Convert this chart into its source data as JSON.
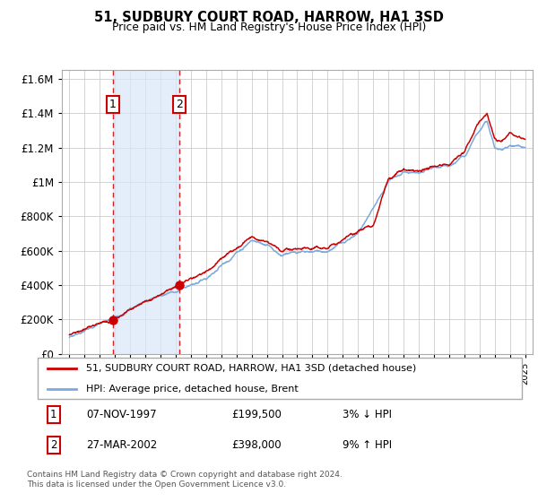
{
  "title": "51, SUDBURY COURT ROAD, HARROW, HA1 3SD",
  "subtitle": "Price paid vs. HM Land Registry's House Price Index (HPI)",
  "background_color": "#ffffff",
  "grid_color": "#cccccc",
  "hpi_color": "#7aaadd",
  "price_color": "#cc0000",
  "sale1_x": 1997.855,
  "sale1_y": 199500,
  "sale2_x": 2002.23,
  "sale2_y": 398000,
  "ylim": [
    0,
    1650000
  ],
  "yticks": [
    0,
    200000,
    400000,
    600000,
    800000,
    1000000,
    1200000,
    1400000,
    1600000
  ],
  "xlim": [
    1994.5,
    2025.5
  ],
  "legend_label_price": "51, SUDBURY COURT ROAD, HARROW, HA1 3SD (detached house)",
  "legend_label_hpi": "HPI: Average price, detached house, Brent",
  "footer": "Contains HM Land Registry data © Crown copyright and database right 2024.\nThis data is licensed under the Open Government Licence v3.0.",
  "sale1_label": "1",
  "sale2_label": "2",
  "table_rows": [
    [
      "1",
      "07-NOV-1997",
      "£199,500",
      "3% ↓ HPI"
    ],
    [
      "2",
      "27-MAR-2002",
      "£398,000",
      "9% ↑ HPI"
    ]
  ]
}
